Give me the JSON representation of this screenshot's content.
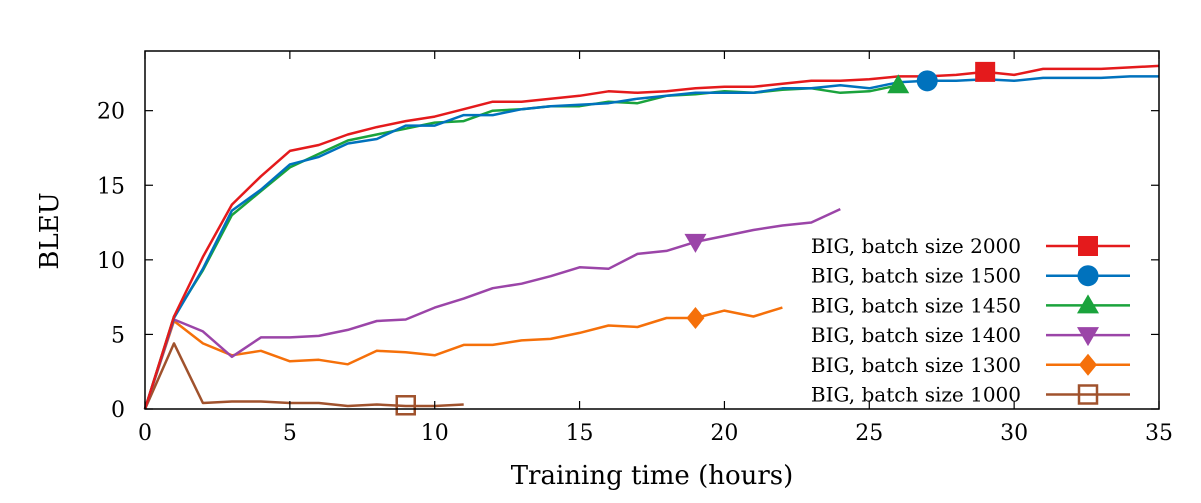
{
  "chart_data": {
    "type": "line",
    "xlabel": "Training time (hours)",
    "ylabel": "BLEU",
    "xlim": [
      0,
      35
    ],
    "ylim": [
      0,
      24
    ],
    "x_ticks": [
      0,
      5,
      10,
      15,
      20,
      25,
      30,
      35
    ],
    "y_ticks": [
      0,
      5,
      10,
      15,
      20
    ],
    "grid": false,
    "legend_position": "right",
    "series": [
      {
        "name": "BIG, batch size 2000",
        "color": "#e41a1c",
        "marker": "square-filled",
        "marker_at": [
          29,
          22.6
        ],
        "x": [
          0,
          1,
          2,
          3,
          4,
          5,
          6,
          7,
          8,
          9,
          10,
          11,
          12,
          13,
          14,
          15,
          16,
          17,
          18,
          19,
          20,
          21,
          22,
          23,
          24,
          25,
          26,
          27,
          28,
          29,
          30,
          31,
          32,
          33,
          34,
          35
        ],
        "y": [
          0,
          6.2,
          10.2,
          13.7,
          15.6,
          17.3,
          17.7,
          18.4,
          18.9,
          19.3,
          19.6,
          20.1,
          20.6,
          20.6,
          20.8,
          21.0,
          21.3,
          21.2,
          21.3,
          21.5,
          21.6,
          21.6,
          21.8,
          22.0,
          22.0,
          22.1,
          22.3,
          22.3,
          22.4,
          22.6,
          22.4,
          22.8,
          22.8,
          22.8,
          22.9,
          23.0
        ]
      },
      {
        "name": "BIG, batch size 1500",
        "color": "#0072bd",
        "marker": "circle-filled",
        "marker_at": [
          27,
          22.0
        ],
        "x": [
          0,
          1,
          2,
          3,
          4,
          5,
          6,
          7,
          8,
          9,
          10,
          11,
          12,
          13,
          14,
          15,
          16,
          17,
          18,
          19,
          20,
          21,
          22,
          23,
          24,
          25,
          26,
          27,
          28,
          29,
          30,
          31,
          32,
          33,
          34,
          35
        ],
        "y": [
          0,
          6.1,
          9.4,
          13.3,
          14.7,
          16.4,
          16.9,
          17.8,
          18.1,
          19.0,
          19.0,
          19.7,
          19.7,
          20.1,
          20.3,
          20.4,
          20.5,
          20.8,
          21.0,
          21.2,
          21.2,
          21.2,
          21.5,
          21.5,
          21.7,
          21.5,
          21.9,
          22.0,
          22.0,
          22.1,
          22.0,
          22.2,
          22.2,
          22.2,
          22.3,
          22.3
        ]
      },
      {
        "name": "BIG, batch size 1450",
        "color": "#1aa33c",
        "marker": "triangle-up-filled",
        "marker_at": [
          26,
          21.7
        ],
        "x": [
          0,
          1,
          2,
          3,
          4,
          5,
          6,
          7,
          8,
          9,
          10,
          11,
          12,
          13,
          14,
          15,
          16,
          17,
          18,
          19,
          20,
          21,
          22,
          23,
          24,
          25,
          26
        ],
        "y": [
          0,
          6.2,
          9.3,
          13.0,
          14.6,
          16.2,
          17.1,
          18.0,
          18.4,
          18.8,
          19.2,
          19.3,
          20.0,
          20.1,
          20.3,
          20.3,
          20.6,
          20.5,
          21.0,
          21.1,
          21.3,
          21.2,
          21.4,
          21.5,
          21.2,
          21.3,
          21.7
        ]
      },
      {
        "name": "BIG, batch size 1400",
        "color": "#9b45a8",
        "marker": "triangle-down-filled",
        "marker_at": [
          19,
          11.2
        ],
        "x": [
          0,
          1,
          2,
          3,
          4,
          5,
          6,
          7,
          8,
          9,
          10,
          11,
          12,
          13,
          14,
          15,
          16,
          17,
          18,
          19,
          20,
          21,
          22,
          23,
          24
        ],
        "y": [
          0,
          6.0,
          5.2,
          3.5,
          4.8,
          4.8,
          4.9,
          5.3,
          5.9,
          6.0,
          6.8,
          7.4,
          8.1,
          8.4,
          8.9,
          9.5,
          9.4,
          10.4,
          10.6,
          11.2,
          11.6,
          12.0,
          12.3,
          12.5,
          13.4
        ]
      },
      {
        "name": "BIG, batch size 1300",
        "color": "#f5700a",
        "marker": "diamond-filled",
        "marker_at": [
          19,
          6.1
        ],
        "x": [
          0,
          1,
          2,
          3,
          4,
          5,
          6,
          7,
          8,
          9,
          10,
          11,
          12,
          13,
          14,
          15,
          16,
          17,
          18,
          19,
          20,
          21,
          22
        ],
        "y": [
          0,
          5.9,
          4.4,
          3.6,
          3.9,
          3.2,
          3.3,
          3.0,
          3.9,
          3.8,
          3.6,
          4.3,
          4.3,
          4.6,
          4.7,
          5.1,
          5.6,
          5.5,
          6.1,
          6.1,
          6.6,
          6.2,
          6.8
        ]
      },
      {
        "name": "BIG, batch size 1000",
        "color": "#a0522d",
        "marker": "square-open",
        "marker_at": [
          9,
          0.25
        ],
        "x": [
          0,
          1,
          2,
          3,
          4,
          5,
          6,
          7,
          8,
          9,
          10,
          11
        ],
        "y": [
          0,
          4.4,
          0.4,
          0.5,
          0.5,
          0.4,
          0.4,
          0.2,
          0.3,
          0.2,
          0.2,
          0.3
        ]
      }
    ]
  }
}
